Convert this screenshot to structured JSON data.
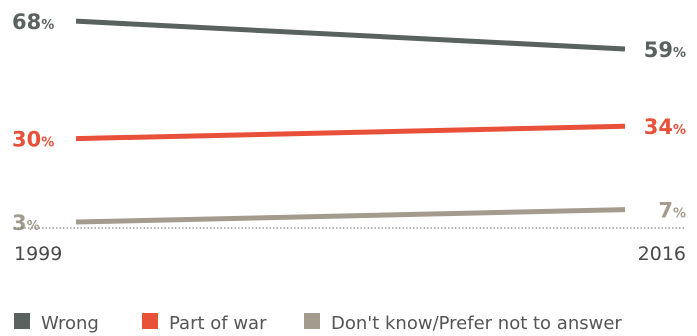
{
  "chart_data": {
    "type": "line",
    "x": [
      "1999",
      "2016"
    ],
    "series": [
      {
        "name": "Wrong",
        "values": [
          68,
          59
        ],
        "color": "#59625f"
      },
      {
        "name": "Part of war",
        "values": [
          30,
          34
        ],
        "color": "#e8503a"
      },
      {
        "name": "Don't know/Prefer not to answer",
        "values": [
          3,
          7
        ],
        "color": "#a39b8e"
      }
    ],
    "value_suffix": "%",
    "ylim": [
      0,
      70
    ],
    "legend_position": "bottom",
    "grid": false
  }
}
